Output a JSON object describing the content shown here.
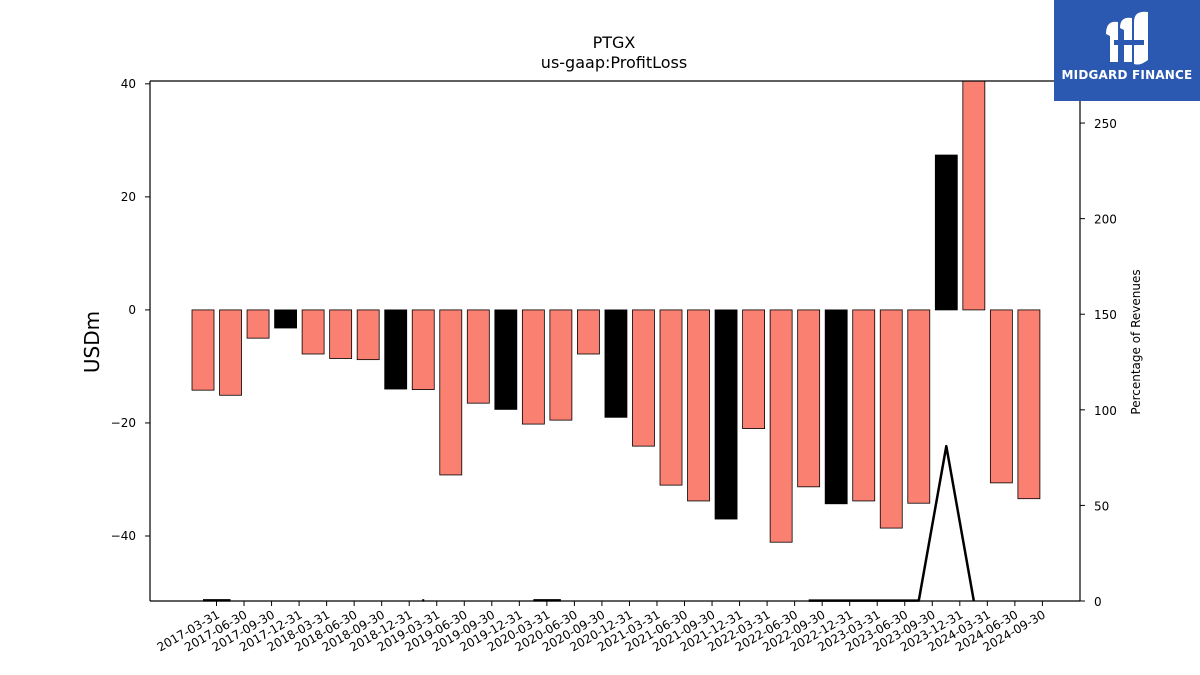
{
  "chart_data": {
    "type": "bar",
    "title": "PTGX",
    "subtitle": "us-gaap:ProfitLoss",
    "ylabel": "USDm",
    "ylabel_right": "Percentage of Revenues",
    "ylim": [
      -51.5,
      40.5
    ],
    "ylim_right": [
      0,
      272
    ],
    "yticks": [
      40,
      20,
      0,
      -20,
      -40
    ],
    "yticks_right": [
      250,
      200,
      150,
      100,
      50,
      0
    ],
    "grid": false,
    "colors": {
      "salmon": "#fa8072",
      "black": "#000000",
      "line": "#000000"
    },
    "categories": [
      "2017-03-31",
      "2017-06-30",
      "2017-09-30",
      "2017-12-31",
      "2018-03-31",
      "2018-06-30",
      "2018-09-30",
      "2018-12-31",
      "2019-03-31",
      "2019-06-30",
      "2019-09-30",
      "2019-12-31",
      "2020-03-31",
      "2020-06-30",
      "2020-09-30",
      "2020-12-31",
      "2021-03-31",
      "2021-06-30",
      "2021-09-30",
      "2021-12-31",
      "2022-03-31",
      "2022-06-30",
      "2022-09-30",
      "2022-12-31",
      "2023-03-31",
      "2023-06-30",
      "2023-09-30",
      "2023-12-31",
      "2024-03-31",
      "2024-06-30",
      "2024-09-30"
    ],
    "values": [
      -14.2,
      -15.1,
      -5.0,
      -3.2,
      -7.8,
      -8.6,
      -8.8,
      -14.0,
      -14.1,
      -29.2,
      -16.5,
      -17.6,
      -20.2,
      -19.5,
      -7.8,
      -19.0,
      -24.1,
      -31.0,
      -33.8,
      -37.0,
      -21.0,
      -41.1,
      -31.3,
      -34.3,
      -33.8,
      -38.6,
      -34.2,
      27.4,
      40.5,
      -30.6,
      -33.4
    ],
    "bar_colors": [
      "salmon",
      "salmon",
      "salmon",
      "black",
      "salmon",
      "salmon",
      "salmon",
      "black",
      "salmon",
      "salmon",
      "salmon",
      "black",
      "salmon",
      "salmon",
      "salmon",
      "black",
      "salmon",
      "salmon",
      "salmon",
      "black",
      "salmon",
      "salmon",
      "salmon",
      "black",
      "salmon",
      "salmon",
      "salmon",
      "black",
      "salmon",
      "salmon",
      "salmon"
    ],
    "line_series": {
      "segments": [
        {
          "x_index": [
            0,
            1
          ],
          "y": [
            0.3,
            0.3
          ]
        },
        {
          "x_index": [
            8,
            8
          ],
          "y": [
            0.3,
            0.3
          ]
        },
        {
          "x_index": [
            12,
            13
          ],
          "y": [
            0.3,
            0.3
          ]
        },
        {
          "x_index": [
            22,
            23,
            24,
            25,
            26,
            27,
            28
          ],
          "y": [
            0.2,
            0.2,
            0.2,
            0.2,
            0.2,
            81,
            0
          ]
        }
      ]
    }
  },
  "logo": {
    "text": "MIDGARD FINANCE"
  }
}
